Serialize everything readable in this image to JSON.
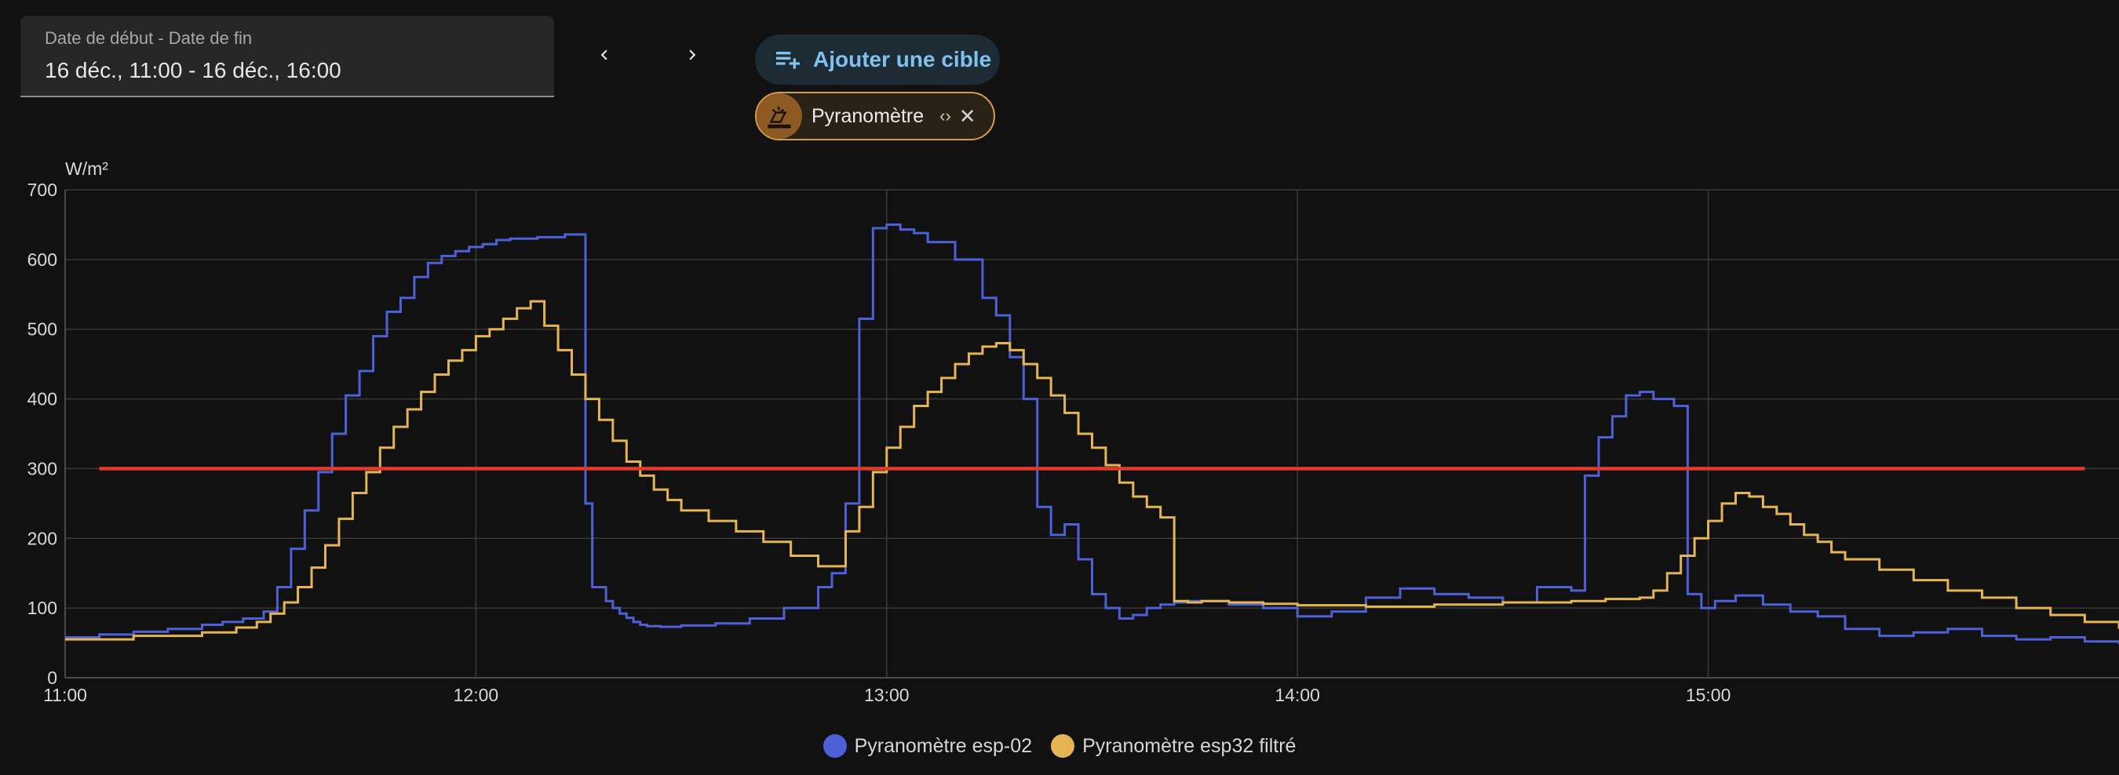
{
  "date_range": {
    "label": "Date de début - Date de fin",
    "value": "16 déc., 11:00 - 16 déc., 16:00"
  },
  "nav": {
    "prev_icon": "chevron-left-icon",
    "next_icon": "chevron-right-icon"
  },
  "add_target": {
    "label": "Ajouter une cible",
    "icon": "playlist-plus-icon",
    "color": "#80c1ed"
  },
  "target_chip": {
    "label": "Pyranomètre",
    "icon": "solar-panel-icon",
    "color": "#d89a47"
  },
  "chart_data": {
    "type": "line",
    "ylabel": "W/m²",
    "ylim": [
      0,
      700
    ],
    "yticks": [
      "0",
      "100",
      "200",
      "300",
      "400",
      "500",
      "600",
      "700"
    ],
    "xlim": [
      "11:00",
      "16:00"
    ],
    "xticks": [
      "11:00",
      "12:00",
      "13:00",
      "14:00",
      "15:00"
    ],
    "grid": true,
    "legend": "bottom-center",
    "series": [
      {
        "name": "Pyranomètre esp-02",
        "color": "#4d60d6",
        "step": true,
        "x": [
          "11:00",
          "11:05",
          "11:10",
          "11:15",
          "11:20",
          "11:23",
          "11:26",
          "11:29",
          "11:31",
          "11:33",
          "11:35",
          "11:37",
          "11:39",
          "11:41",
          "11:43",
          "11:45",
          "11:47",
          "11:49",
          "11:51",
          "11:53",
          "11:55",
          "11:57",
          "11:59",
          "12:01",
          "12:03",
          "12:05",
          "12:09",
          "12:13",
          "12:16",
          "12:17",
          "12:19",
          "12:20",
          "12:21",
          "12:22",
          "12:23",
          "12:24",
          "12:25",
          "12:27",
          "12:30",
          "12:35",
          "12:40",
          "12:45",
          "12:50",
          "12:52",
          "12:54",
          "12:56",
          "12:58",
          "13:00",
          "13:02",
          "13:04",
          "13:06",
          "13:10",
          "13:14",
          "13:16",
          "13:18",
          "13:20",
          "13:22",
          "13:24",
          "13:26",
          "13:28",
          "13:30",
          "13:32",
          "13:34",
          "13:36",
          "13:38",
          "13:40",
          "13:42",
          "13:44",
          "13:50",
          "13:55",
          "14:00",
          "14:05",
          "14:10",
          "14:15",
          "14:20",
          "14:25",
          "14:30",
          "14:35",
          "14:40",
          "14:42",
          "14:44",
          "14:46",
          "14:48",
          "14:50",
          "14:52",
          "14:55",
          "14:57",
          "14:59",
          "15:01",
          "15:04",
          "15:08",
          "15:12",
          "15:16",
          "15:20",
          "15:25",
          "15:30",
          "15:35",
          "15:40",
          "15:45",
          "15:50",
          "15:55",
          "16:00"
        ],
        "values": [
          58,
          62,
          66,
          70,
          76,
          80,
          85,
          95,
          130,
          185,
          240,
          295,
          350,
          405,
          440,
          490,
          525,
          545,
          575,
          595,
          605,
          612,
          618,
          622,
          628,
          630,
          632,
          636,
          250,
          130,
          110,
          100,
          92,
          86,
          80,
          76,
          74,
          73,
          75,
          78,
          85,
          100,
          130,
          150,
          250,
          515,
          645,
          650,
          643,
          638,
          625,
          600,
          545,
          520,
          460,
          400,
          245,
          205,
          220,
          170,
          120,
          100,
          85,
          90,
          100,
          105,
          108,
          110,
          105,
          100,
          88,
          95,
          115,
          128,
          120,
          115,
          108,
          130,
          125,
          290,
          345,
          375,
          405,
          410,
          400,
          390,
          120,
          100,
          110,
          118,
          105,
          95,
          88,
          70,
          60,
          65,
          70,
          60,
          55,
          58,
          52,
          48
        ]
      },
      {
        "name": "Pyranomètre esp32 filtré",
        "color": "#e4b552",
        "step": true,
        "x": [
          "11:00",
          "11:10",
          "11:20",
          "11:25",
          "11:28",
          "11:30",
          "11:32",
          "11:34",
          "11:36",
          "11:38",
          "11:40",
          "11:42",
          "11:44",
          "11:46",
          "11:48",
          "11:50",
          "11:52",
          "11:54",
          "11:56",
          "11:58",
          "12:00",
          "12:02",
          "12:04",
          "12:06",
          "12:08",
          "12:10",
          "12:12",
          "12:14",
          "12:16",
          "12:18",
          "12:20",
          "12:22",
          "12:24",
          "12:26",
          "12:28",
          "12:30",
          "12:34",
          "12:38",
          "12:42",
          "12:46",
          "12:50",
          "12:54",
          "12:56",
          "12:58",
          "13:00",
          "13:02",
          "13:04",
          "13:06",
          "13:08",
          "13:10",
          "13:12",
          "13:14",
          "13:16",
          "13:18",
          "13:20",
          "13:22",
          "13:24",
          "13:26",
          "13:28",
          "13:30",
          "13:32",
          "13:34",
          "13:36",
          "13:38",
          "13:40",
          "13:42",
          "13:44",
          "13:46",
          "13:50",
          "13:55",
          "14:00",
          "14:10",
          "14:20",
          "14:30",
          "14:40",
          "14:45",
          "14:50",
          "14:52",
          "14:54",
          "14:56",
          "14:58",
          "15:00",
          "15:02",
          "15:04",
          "15:06",
          "15:08",
          "15:10",
          "15:12",
          "15:14",
          "15:16",
          "15:18",
          "15:20",
          "15:25",
          "15:30",
          "15:35",
          "15:40",
          "15:45",
          "15:50",
          "15:55",
          "16:00"
        ],
        "values": [
          55,
          60,
          65,
          72,
          80,
          92,
          108,
          130,
          158,
          190,
          228,
          265,
          295,
          330,
          360,
          385,
          410,
          435,
          455,
          470,
          490,
          500,
          515,
          530,
          540,
          505,
          470,
          435,
          400,
          370,
          340,
          310,
          290,
          270,
          255,
          240,
          225,
          210,
          195,
          175,
          160,
          210,
          245,
          295,
          330,
          360,
          390,
          410,
          430,
          450,
          465,
          475,
          480,
          470,
          450,
          430,
          405,
          380,
          350,
          330,
          305,
          280,
          260,
          245,
          230,
          110,
          108,
          110,
          108,
          106,
          104,
          102,
          105,
          108,
          110,
          113,
          115,
          125,
          150,
          175,
          200,
          225,
          250,
          265,
          260,
          245,
          235,
          220,
          205,
          195,
          180,
          170,
          155,
          140,
          125,
          115,
          100,
          90,
          80,
          70
        ]
      },
      {
        "name": "",
        "color": "#e03c25",
        "step": false,
        "x": [
          "11:05",
          "15:55"
        ],
        "values": [
          300,
          300
        ]
      }
    ]
  }
}
